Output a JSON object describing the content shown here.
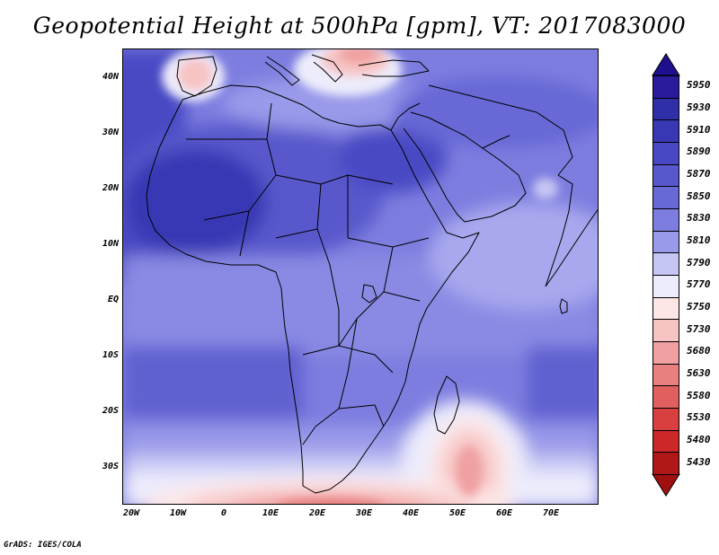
{
  "title": "Geopotential Height at 500hPa [gpm], VT: 2017083000",
  "credit": "GrADS: IGES/COLA",
  "lat_labels": [
    "40N",
    "30N",
    "20N",
    "10N",
    "EQ",
    "10S",
    "20S",
    "30S"
  ],
  "lon_labels": [
    "20W",
    "10W",
    "0",
    "10E",
    "20E",
    "30E",
    "40E",
    "50E",
    "60E",
    "70E"
  ],
  "colorbar": {
    "levels": [
      "5950",
      "5930",
      "5910",
      "5890",
      "5870",
      "5850",
      "5830",
      "5810",
      "5790",
      "5770",
      "5750",
      "5730",
      "5680",
      "5630",
      "5580",
      "5530",
      "5480",
      "5430"
    ],
    "colors": [
      "#2a1a9c",
      "#2f2fa8",
      "#3838b4",
      "#4848c4",
      "#5858cc",
      "#6868d6",
      "#7d7de0",
      "#9a9aea",
      "#c6c6f4",
      "#ececfc",
      "#fde6e6",
      "#f7c4c4",
      "#f0a0a0",
      "#e88080",
      "#e06060",
      "#d84040",
      "#cc2828",
      "#b01818"
    ],
    "top_arrow_color": "#1e0f8c",
    "bottom_arrow_color": "#a01010"
  },
  "map": {
    "domain": "Africa, Middle East and Arabian Sea",
    "features": [
      {
        "name": "subtropical-ridge-high",
        "region": "Sahara / West Africa",
        "level": "5890-5910"
      },
      {
        "name": "mediterranean-trough",
        "region": "Aegean / Greece",
        "level": "5750-5790"
      },
      {
        "name": "iberian-low",
        "region": "Iberia",
        "level": "5750-5790"
      },
      {
        "name": "southern-trough",
        "region": "South Africa",
        "level": "5630-5730"
      },
      {
        "name": "southwest-indian-ocean-trough",
        "region": "east of Madagascar",
        "level": "5680-5770"
      }
    ]
  }
}
